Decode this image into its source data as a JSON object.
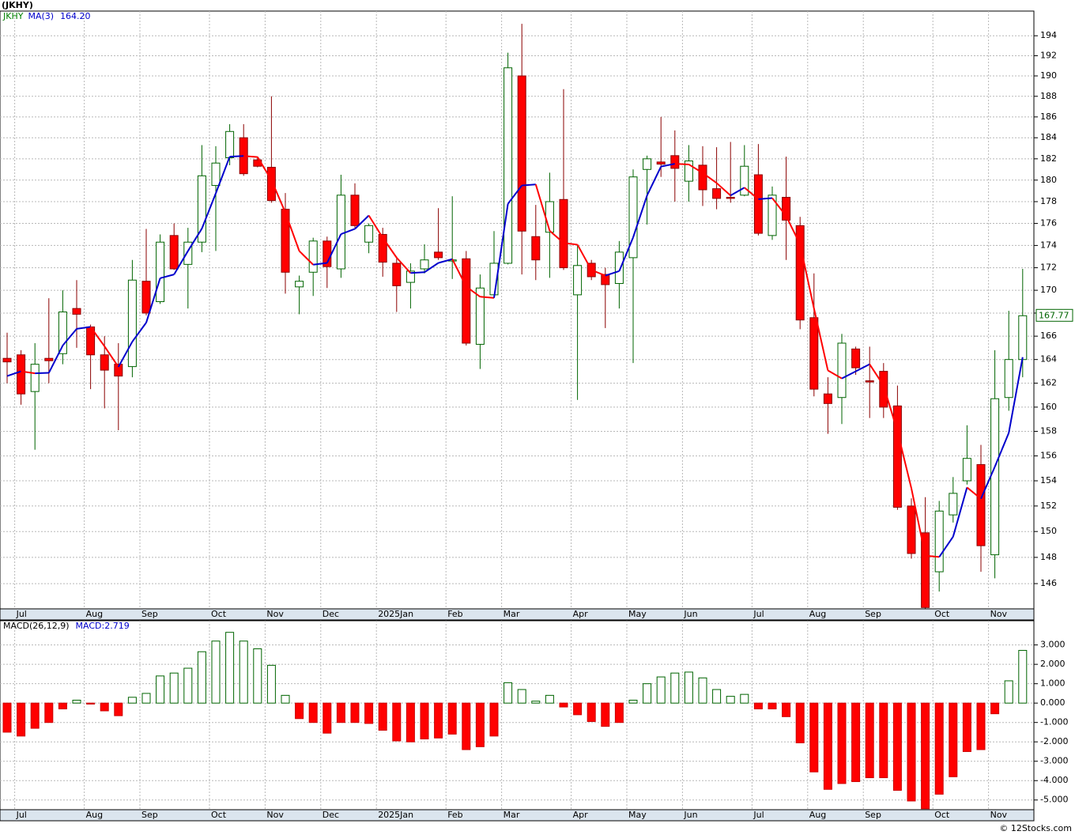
{
  "copyright": "© 12Stocks.com",
  "chart_data": [
    {
      "type": "candlestick",
      "title": "(JKHY)",
      "symbol": "JKHY",
      "symbol_color": "#008000",
      "x_labels": [
        null,
        "Jul",
        null,
        null,
        null,
        null,
        "Aug",
        null,
        null,
        null,
        "Sep",
        null,
        null,
        null,
        null,
        "Oct",
        null,
        null,
        null,
        "Nov",
        null,
        null,
        null,
        "Dec",
        null,
        null,
        null,
        "2025Jan",
        null,
        null,
        null,
        null,
        "Feb",
        null,
        null,
        null,
        "Mar",
        null,
        null,
        null,
        null,
        "Apr",
        null,
        null,
        null,
        "May",
        null,
        null,
        null,
        "Jun",
        null,
        null,
        null,
        null,
        "Jul",
        null,
        null,
        null,
        "Aug",
        null,
        null,
        null,
        "Sep",
        null,
        null,
        null,
        null,
        "Oct",
        null,
        null,
        null,
        "Nov",
        null,
        null
      ],
      "open": [
        164.1,
        164.4,
        161.3,
        164.1,
        164.5,
        168.4,
        166.8,
        164.4,
        163.6,
        163.4,
        170.8,
        169.0,
        174.9,
        172.3,
        174.3,
        179.5,
        182.1,
        184.0,
        181.9,
        181.2,
        177.3,
        170.3,
        171.6,
        174.4,
        171.9,
        178.6,
        174.3,
        175.0,
        172.4,
        170.7,
        171.9,
        173.4,
        172.6,
        172.8,
        165.3,
        169.6,
        172.4,
        190.0,
        174.8,
        175.2,
        178.2,
        169.6,
        172.4,
        171.4,
        170.6,
        172.9,
        181.0,
        181.7,
        182.3,
        179.9,
        181.4,
        179.2,
        178.4,
        178.6,
        180.5,
        174.9,
        178.4,
        175.8,
        167.6,
        161.1,
        160.8,
        164.9,
        162.2,
        163.0,
        160.1,
        152.0,
        149.9,
        146.9,
        151.3,
        154.0,
        155.3,
        148.2,
        160.8,
        164.0
      ],
      "high": [
        166.3,
        164.8,
        165.4,
        169.3,
        170.0,
        170.9,
        167.0,
        166.0,
        165.4,
        172.7,
        175.5,
        175.0,
        176.0,
        175.6,
        183.3,
        183.2,
        185.3,
        185.3,
        182.2,
        188.0,
        178.8,
        171.3,
        174.7,
        174.8,
        180.5,
        179.7,
        176.0,
        175.6,
        173.0,
        172.4,
        174.1,
        177.4,
        178.5,
        173.5,
        171.4,
        175.3,
        192.3,
        195.2,
        177.7,
        180.7,
        188.7,
        174.0,
        172.7,
        172.0,
        174.4,
        181.0,
        182.3,
        186.0,
        184.7,
        183.3,
        183.2,
        183.1,
        183.6,
        183.3,
        183.4,
        179.4,
        182.2,
        176.6,
        171.5,
        162.5,
        166.2,
        165.1,
        165.1,
        163.7,
        161.8,
        152.6,
        152.7,
        152.4,
        154.3,
        158.5,
        156.9,
        164.8,
        168.2,
        171.9
      ],
      "low": [
        162.0,
        160.2,
        156.5,
        162.0,
        163.6,
        165.0,
        161.5,
        159.9,
        158.1,
        162.5,
        167.8,
        168.8,
        171.8,
        168.4,
        173.4,
        173.5,
        181.4,
        180.4,
        181.2,
        177.9,
        169.7,
        167.9,
        169.5,
        170.2,
        171.1,
        175.6,
        173.3,
        171.2,
        168.1,
        168.4,
        171.5,
        172.7,
        171.0,
        165.2,
        163.2,
        169.4,
        172.3,
        171.4,
        170.9,
        171.1,
        171.8,
        160.6,
        170.9,
        166.7,
        168.4,
        163.7,
        175.9,
        180.3,
        178.0,
        178.0,
        177.6,
        177.3,
        177.9,
        178.5,
        174.9,
        174.5,
        172.7,
        166.6,
        160.9,
        157.8,
        158.6,
        162.7,
        159.1,
        159.1,
        151.7,
        147.9,
        144.1,
        145.4,
        150.7,
        153.7,
        146.9,
        146.4,
        159.7,
        162.5
      ],
      "close": [
        163.8,
        161.1,
        163.6,
        163.9,
        168.1,
        167.9,
        164.4,
        163.1,
        162.6,
        170.9,
        168.0,
        174.3,
        171.9,
        174.3,
        180.4,
        181.6,
        184.6,
        180.6,
        181.3,
        178.1,
        171.6,
        170.8,
        174.4,
        172.1,
        178.6,
        175.8,
        175.8,
        172.5,
        170.4,
        171.7,
        172.7,
        172.9,
        172.7,
        165.4,
        170.2,
        172.4,
        190.8,
        175.3,
        172.7,
        178.0,
        172.0,
        172.2,
        171.2,
        170.5,
        173.4,
        180.3,
        182.0,
        181.5,
        181.1,
        181.8,
        179.1,
        178.3,
        178.3,
        181.3,
        175.1,
        178.6,
        176.3,
        167.4,
        161.5,
        160.3,
        165.4,
        163.3,
        162.1,
        160.0,
        151.9,
        148.3,
        144.2,
        151.6,
        153.0,
        155.8,
        148.9,
        160.7,
        164.0,
        167.77
      ],
      "up_color": "#006400",
      "down_color": "#ff0000",
      "overlays": [
        {
          "name": "MA(3)",
          "up_color": "#0000cc",
          "down_color": "#ff0000",
          "last_label": "164.20",
          "values": [
            162.6,
            163.0,
            162.83,
            162.87,
            165.2,
            166.63,
            166.8,
            165.13,
            163.37,
            165.53,
            167.17,
            171.07,
            171.4,
            173.5,
            175.53,
            178.77,
            182.2,
            182.27,
            182.17,
            180.0,
            177.0,
            173.5,
            172.27,
            172.43,
            175.03,
            175.5,
            176.73,
            174.7,
            172.9,
            171.53,
            171.6,
            172.43,
            172.77,
            170.33,
            169.43,
            169.33,
            177.8,
            179.5,
            179.6,
            175.33,
            174.23,
            174.07,
            171.8,
            171.3,
            171.7,
            174.73,
            178.57,
            181.27,
            181.53,
            181.47,
            180.67,
            179.73,
            178.57,
            179.3,
            178.23,
            178.33,
            176.67,
            174.1,
            168.4,
            163.07,
            162.4,
            163.0,
            163.6,
            161.8,
            158.0,
            153.4,
            148.13,
            148.03,
            149.6,
            153.47,
            152.57,
            155.13,
            157.87,
            164.2
          ]
        }
      ],
      "ylim": [
        144.1,
        196.5
      ],
      "log_scale": true,
      "grid": true,
      "yticks": [
        146,
        148,
        150,
        152,
        154,
        156,
        158,
        160,
        162,
        164,
        166,
        168,
        170,
        172,
        174,
        176,
        178,
        180,
        182,
        184,
        186,
        188,
        190,
        192,
        194
      ]
    },
    {
      "type": "bar",
      "title": "MACD(26,12,9)",
      "value_title": "MACD:",
      "value_title_color": "#0000cc",
      "x_labels": [
        null,
        "Jul",
        null,
        null,
        null,
        null,
        "Aug",
        null,
        null,
        null,
        "Sep",
        null,
        null,
        null,
        null,
        "Oct",
        null,
        null,
        null,
        "Nov",
        null,
        null,
        null,
        "Dec",
        null,
        null,
        null,
        "2025Jan",
        null,
        null,
        null,
        null,
        "Feb",
        null,
        null,
        null,
        "Mar",
        null,
        null,
        null,
        null,
        "Apr",
        null,
        null,
        null,
        "May",
        null,
        null,
        null,
        "Jun",
        null,
        null,
        null,
        null,
        "Jul",
        null,
        null,
        null,
        "Aug",
        null,
        null,
        null,
        "Sep",
        null,
        null,
        null,
        null,
        "Oct",
        null,
        null,
        null,
        "Nov",
        null,
        null
      ],
      "values": [
        -1.5,
        -1.7,
        -1.3,
        -1.0,
        -0.3,
        0.15,
        -0.05,
        -0.4,
        -0.65,
        0.3,
        0.5,
        1.4,
        1.55,
        1.8,
        2.65,
        3.2,
        3.65,
        3.2,
        2.8,
        1.95,
        0.4,
        -0.8,
        -1.0,
        -1.55,
        -1.0,
        -1.0,
        -1.05,
        -1.4,
        -1.95,
        -2.0,
        -1.85,
        -1.8,
        -1.6,
        -2.4,
        -2.25,
        -1.7,
        1.05,
        0.7,
        0.1,
        0.4,
        -0.2,
        -0.6,
        -0.95,
        -1.2,
        -1.0,
        0.15,
        1.0,
        1.35,
        1.55,
        1.6,
        1.3,
        0.7,
        0.35,
        0.45,
        -0.3,
        -0.3,
        -0.7,
        -2.05,
        -3.55,
        -4.45,
        -4.15,
        -4.05,
        -3.85,
        -3.85,
        -4.5,
        -5.05,
        -5.45,
        -4.7,
        -3.8,
        -2.5,
        -2.4,
        -0.55,
        1.15,
        2.719
      ],
      "positive_color": "#006400",
      "negative_color": "#ff0000",
      "ylim": [
        -5.5,
        4.25
      ],
      "grid": true,
      "yticks": [
        {
          "value": -5,
          "label": "-5.000"
        },
        {
          "value": -4,
          "label": "-4.000"
        },
        {
          "value": -3,
          "label": "-3.000"
        },
        {
          "value": -2,
          "label": "-2.000"
        },
        {
          "value": -1,
          "label": "-1.000"
        },
        {
          "value": 0,
          "label": "0.000"
        },
        {
          "value": 1,
          "label": "1.000"
        },
        {
          "value": 2,
          "label": "2.000"
        },
        {
          "value": 3,
          "label": "3.000"
        }
      ]
    }
  ]
}
